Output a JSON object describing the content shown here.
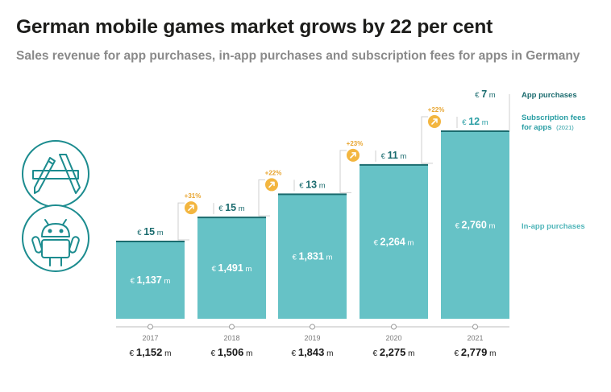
{
  "header": {
    "title": "German mobile games market grows by 22 per cent",
    "subtitle": "Sales revenue for app purchases, in-app purchases and subscription fees for apps in Germany"
  },
  "icons": [
    "app-store-icon",
    "android-icon",
    "arrow-up-right-icon"
  ],
  "colors": {
    "inapp": "#66c2c6",
    "inapp_label": "#4fb5b9",
    "top_line": "#1a6b6e",
    "app_label": "#1a6b6e",
    "subscription_label": "#2a9ea4",
    "badge": "#f3b640",
    "badge_text": "#e8a530",
    "axis": "#bdbdbd",
    "connector": "#cfcfcf",
    "icon_circle": "#1c8c8f"
  },
  "legend": {
    "app": "App purchases",
    "subscription_1": "Subscription fees",
    "subscription_2": "for apps",
    "subscription_note": "(2021)",
    "inapp": "In-app purchases"
  },
  "chart_data": {
    "type": "bar",
    "title": "German mobile games market grows by 22 per cent",
    "subtitle": "Sales revenue for app purchases, in-app purchases and subscription fees for apps in Germany",
    "unit": "€ m",
    "categories": [
      "2017",
      "2018",
      "2019",
      "2020",
      "2021"
    ],
    "series": [
      {
        "name": "In-app purchases",
        "values": [
          1137,
          1491,
          1831,
          2264,
          2760
        ],
        "labels": [
          "1,137",
          "1,491",
          "1,831",
          "2,264",
          "2,760"
        ]
      },
      {
        "name": "App purchases",
        "values": [
          15,
          15,
          13,
          11,
          7
        ],
        "labels": [
          "15",
          "15",
          "13",
          "11",
          "7"
        ]
      },
      {
        "name": "Subscription fees for apps",
        "values": [
          null,
          null,
          null,
          null,
          12
        ],
        "labels": [
          "",
          "",
          "",
          "",
          "12"
        ]
      }
    ],
    "totals": [
      1152,
      1506,
      1843,
      2275,
      2779
    ],
    "total_labels": [
      "1,152",
      "1,506",
      "1,843",
      "2,275",
      "2,779"
    ],
    "growth": [
      "",
      "+31%",
      "+22%",
      "+23%",
      "+22%"
    ],
    "currency": "€",
    "unit_suffix": "m",
    "ylim": [
      0,
      2800
    ],
    "grid": false
  }
}
